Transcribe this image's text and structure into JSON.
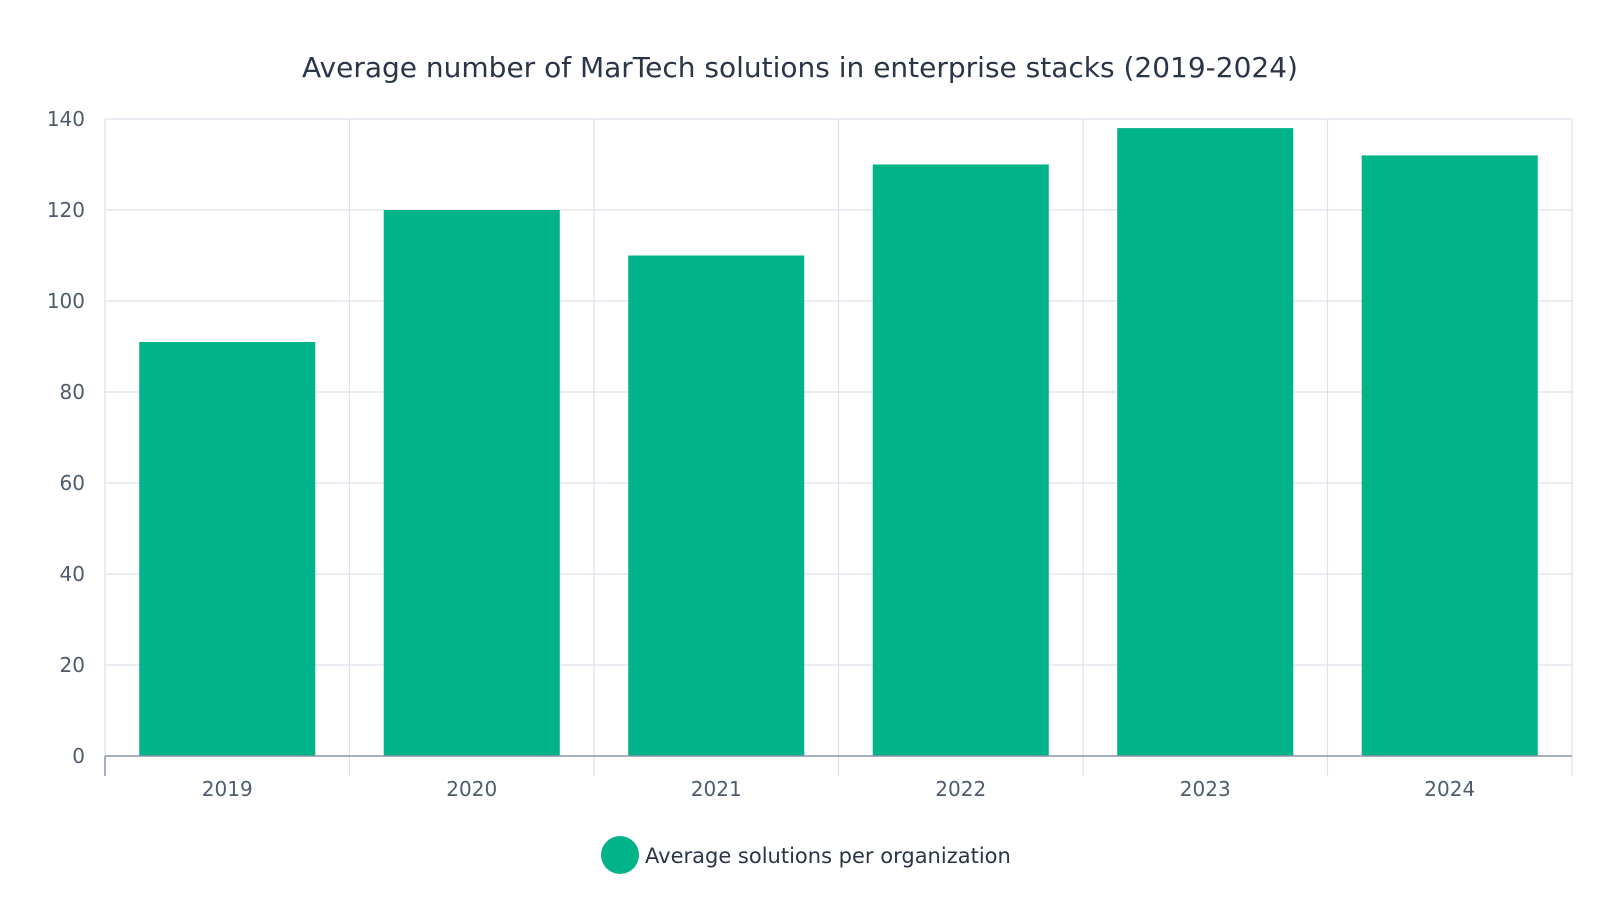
{
  "chart_data": {
    "type": "bar",
    "title": "Average number of MarTech solutions in enterprise stacks (2019-2024)",
    "xlabel": "",
    "ylabel": "",
    "categories": [
      "2019",
      "2020",
      "2021",
      "2022",
      "2023",
      "2024"
    ],
    "series": [
      {
        "name": "Average solutions per organization",
        "values": [
          91,
          120,
          110,
          130,
          138,
          132
        ],
        "color": "#00b388"
      }
    ],
    "ylim": [
      0,
      140
    ],
    "yticks": [
      "0",
      "20",
      "40",
      "60",
      "80",
      "100",
      "120",
      "140"
    ],
    "grid": true,
    "legend_position": "bottom-center"
  }
}
